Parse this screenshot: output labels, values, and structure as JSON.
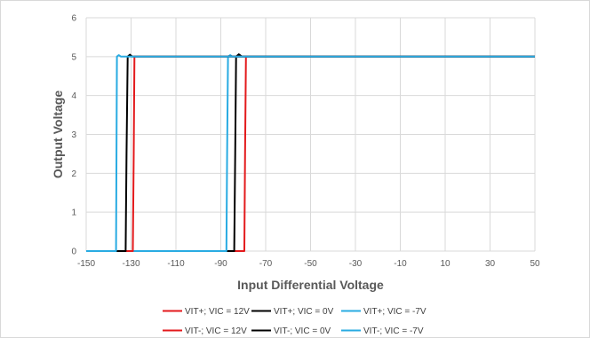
{
  "chart_data": {
    "type": "line",
    "title": "",
    "xlabel": "Input Differential Voltage",
    "ylabel": "Output Voltage",
    "xlim": [
      -150,
      50
    ],
    "ylim": [
      0,
      6
    ],
    "x_ticks": [
      -150,
      -130,
      -110,
      -90,
      -70,
      -50,
      -30,
      -10,
      10,
      30,
      50
    ],
    "y_ticks": [
      0,
      1,
      2,
      3,
      4,
      5,
      6
    ],
    "grid": true,
    "legend_position": "bottom",
    "series": [
      {
        "name": "VIT+; VIC = 12V",
        "color": "#e31a1c",
        "x": [
          -150,
          -79.5,
          -79.2,
          -78.8,
          50
        ],
        "y": [
          0,
          0,
          2.5,
          5.0,
          5.0
        ]
      },
      {
        "name": "VIT+; VIC = 0V",
        "color": "#000000",
        "x": [
          -150,
          -84,
          -83.6,
          -83.2,
          -82,
          -80.5,
          50
        ],
        "y": [
          0,
          0,
          2.5,
          5.0,
          5.06,
          5.0,
          5.0
        ]
      },
      {
        "name": "VIT+; VIC = -7V",
        "color": "#29abe2",
        "x": [
          -150,
          -87.5,
          -87.2,
          -86.8,
          -85.8,
          -84.8,
          50
        ],
        "y": [
          0,
          0,
          2.5,
          5.0,
          5.04,
          5.0,
          5.0
        ]
      },
      {
        "name": "VIT-; VIC = 12V",
        "color": "#e31a1c",
        "x": [
          50,
          -128.5,
          -128.8,
          -129.2,
          -150
        ],
        "y": [
          5.0,
          5.0,
          2.5,
          0,
          0
        ]
      },
      {
        "name": "VIT-; VIC = 0V",
        "color": "#000000",
        "x": [
          50,
          -129.5,
          -130.5,
          -131.5,
          -132,
          -132.4,
          -150
        ],
        "y": [
          5.0,
          5.0,
          5.05,
          5.0,
          2.5,
          0,
          0
        ]
      },
      {
        "name": "VIT-; VIC = -7V",
        "color": "#29abe2",
        "x": [
          50,
          -134.5,
          -135.5,
          -136.3,
          -136.7,
          -150
        ],
        "y": [
          5.0,
          5.0,
          5.04,
          5.0,
          0,
          0
        ]
      }
    ]
  }
}
